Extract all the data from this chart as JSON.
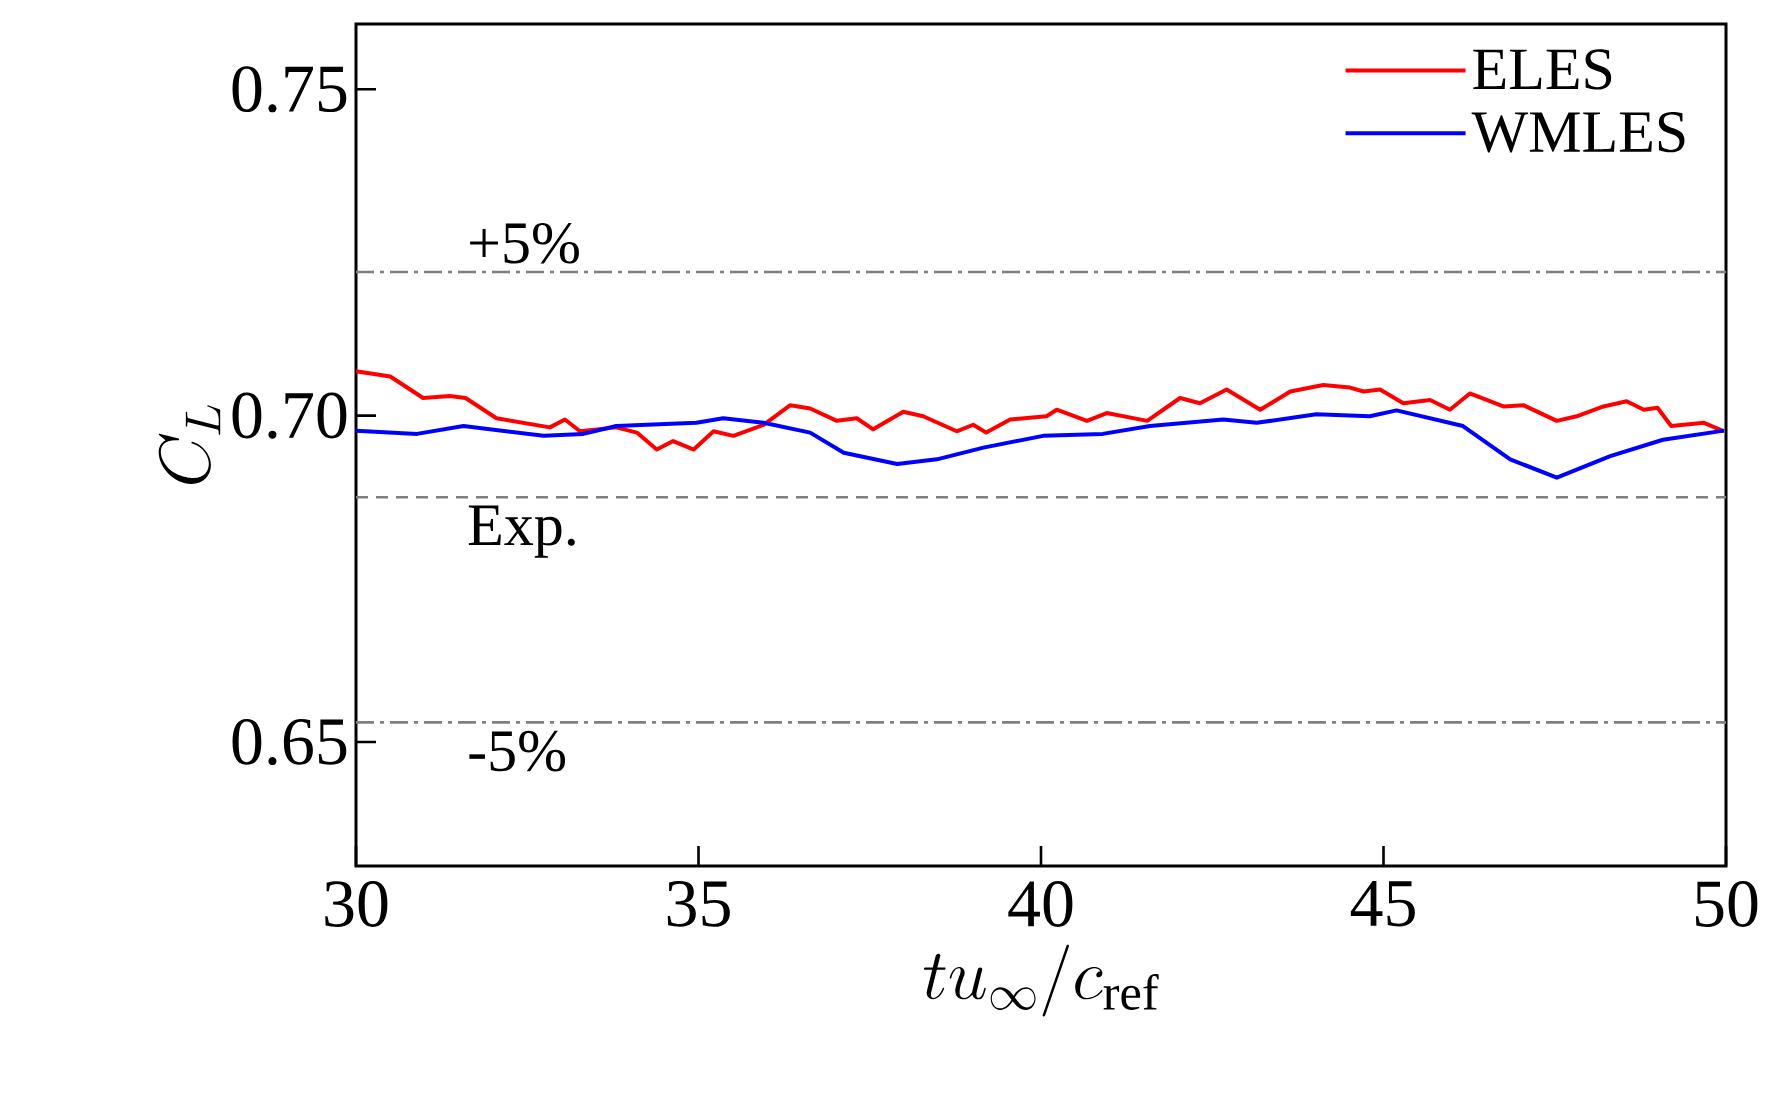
{
  "chart_data": {
    "type": "line",
    "xlabel": "tu_\\infty/c_{\\mathrm{ref}}",
    "ylabel": "C_L",
    "xlim": [
      30,
      50
    ],
    "xticks": [
      30,
      35,
      40,
      45,
      50
    ],
    "ylim": [
      0.631,
      0.76
    ],
    "yticks": [
      0.65,
      {
        "value": 0.7,
        "label": "0.70"
      },
      0.75
    ],
    "legend": "top right",
    "grid": false,
    "series": [
      {
        "name": "ELES",
        "color": "#ff0000",
        "x": [
          30,
          30.5,
          30.98,
          31.37,
          31.6,
          32.05,
          32.83,
          33.05,
          33.27,
          33.8,
          34.1,
          34.39,
          34.63,
          34.93,
          35.22,
          35.51,
          35.95,
          36.34,
          36.63,
          37.02,
          37.31,
          37.55,
          37.99,
          38.28,
          38.77,
          39.01,
          39.2,
          39.55,
          40.08,
          40.23,
          40.67,
          40.96,
          41.55,
          42.03,
          42.32,
          42.71,
          43.2,
          43.64,
          44.12,
          44.51,
          44.71,
          44.95,
          45.29,
          45.68,
          45.97,
          46.26,
          46.75,
          47.04,
          47.53,
          47.82,
          48.21,
          48.55,
          48.8,
          49.0,
          49.2,
          49.68,
          49.97
        ],
        "values": [
          0.7068,
          0.706,
          0.7027,
          0.703,
          0.7027,
          0.6996,
          0.6982,
          0.6994,
          0.6976,
          0.6982,
          0.6974,
          0.6948,
          0.6961,
          0.6948,
          0.6976,
          0.6969,
          0.6986,
          0.7016,
          0.7011,
          0.6992,
          0.6996,
          0.6979,
          0.7006,
          0.6999,
          0.6976,
          0.6986,
          0.6974,
          0.6994,
          0.6999,
          0.7009,
          0.6992,
          0.7004,
          0.6992,
          0.7027,
          0.7019,
          0.704,
          0.7009,
          0.7037,
          0.7047,
          0.7043,
          0.7037,
          0.704,
          0.7019,
          0.7024,
          0.7009,
          0.7034,
          0.7014,
          0.7016,
          0.6992,
          0.6999,
          0.7014,
          0.7022,
          0.7009,
          0.7012,
          0.6984,
          0.6989,
          0.6976
        ]
      },
      {
        "name": "WMLES",
        "color": "#0000ff",
        "x": [
          30,
          30.89,
          31.57,
          32.74,
          33.32,
          33.8,
          34.97,
          35.36,
          35.95,
          36.63,
          37.12,
          37.9,
          38.48,
          39.16,
          40.03,
          40.9,
          41.59,
          42.66,
          43.15,
          44.02,
          44.8,
          45.19,
          46.16,
          46.85,
          47.53,
          48.31,
          49.08,
          49.97
        ],
        "values": [
          0.6977,
          0.6972,
          0.6984,
          0.6969,
          0.6972,
          0.6984,
          0.6989,
          0.6996,
          0.6989,
          0.6974,
          0.6943,
          0.6926,
          0.6933,
          0.6951,
          0.6969,
          0.6972,
          0.6984,
          0.6994,
          0.6989,
          0.7002,
          0.6999,
          0.7008,
          0.6984,
          0.6933,
          0.6905,
          0.6938,
          0.6963,
          0.6977
        ]
      }
    ],
    "ref_lines": [
      {
        "axis": "y",
        "value": 0.722,
        "color": "#808080",
        "line_style": "dashdot"
      },
      {
        "axis": "y",
        "value": 0.6875,
        "color": "#808080",
        "line_style": "dashed"
      },
      {
        "axis": "y",
        "value": 0.653,
        "color": "#808080",
        "line_style": "dashdot"
      }
    ],
    "annotations": [
      {
        "text": "+5%",
        "y": 0.722
      },
      {
        "text": "Exp.",
        "y": 0.6875
      },
      {
        "text": "-5%",
        "y": 0.653
      }
    ]
  }
}
